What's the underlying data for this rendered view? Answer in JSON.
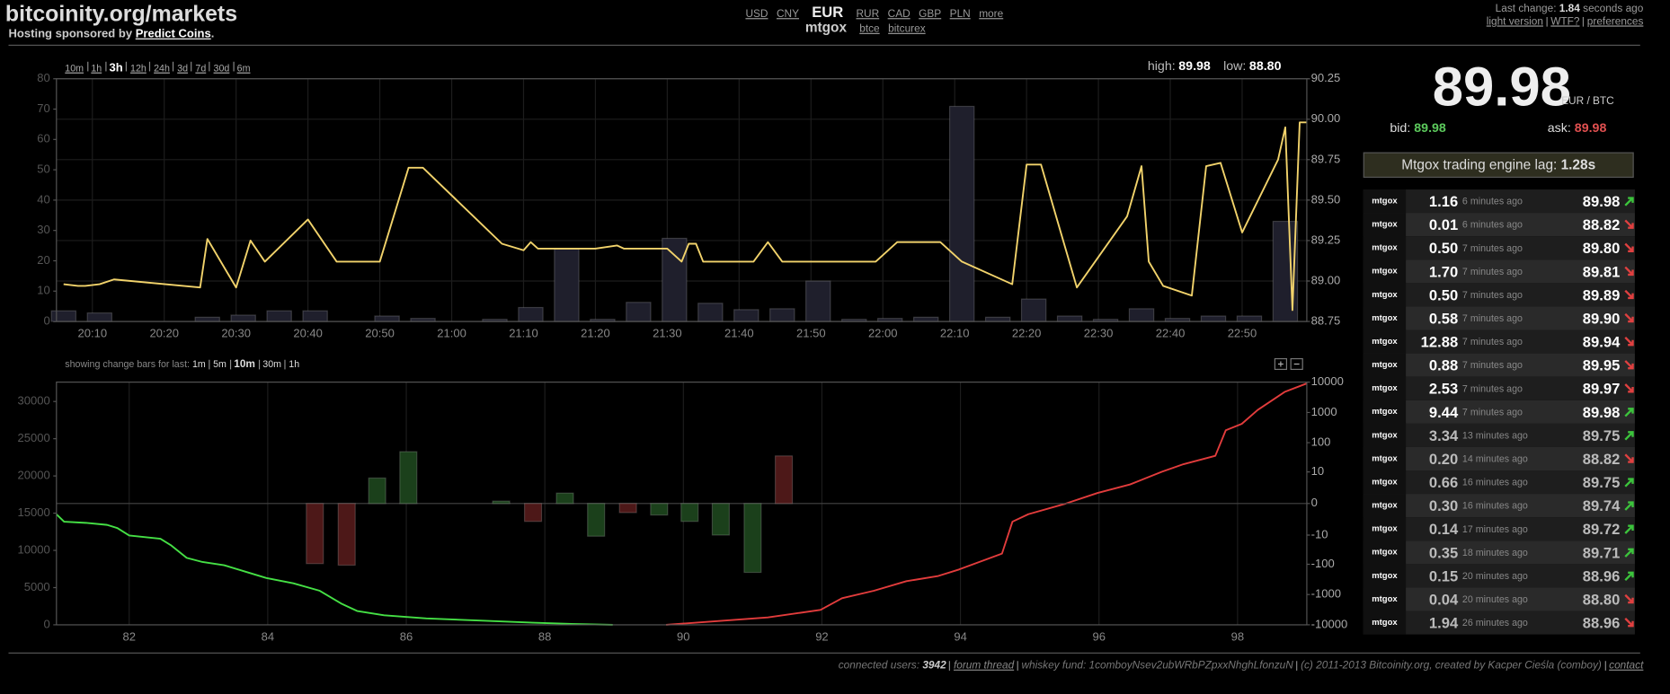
{
  "header": {
    "title": "bitcoinity.org/markets",
    "sponsor_text": "Hosting sponsored by",
    "sponsor_link": "Predict Coins",
    "sponsor_end": "."
  },
  "currencies": {
    "before": [
      "USD",
      "CNY"
    ],
    "active": "EUR",
    "after": [
      "RUR",
      "CAD",
      "GBP",
      "PLN",
      "more"
    ],
    "exchange": "mtgox",
    "exchanges": [
      "btce",
      "bitcurex"
    ]
  },
  "status": {
    "label": "Last change:",
    "value": "1.84",
    "unit": "seconds ago",
    "links": [
      "light version",
      "WTF?",
      "preferences"
    ]
  },
  "timespans": {
    "options": [
      "10m",
      "1h",
      "3h",
      "12h",
      "24h",
      "3d",
      "7d",
      "30d",
      "6m"
    ],
    "active": "3h"
  },
  "range": {
    "high_label": "high:",
    "high": "89.98",
    "low_label": "low:",
    "low": "88.80"
  },
  "change_bars": {
    "label": "showing change bars for last:",
    "options": [
      "1m",
      "5m",
      "10m",
      "30m",
      "1h"
    ],
    "active": "10m"
  },
  "ticker": {
    "price": "89.98",
    "unit": "EUR / BTC",
    "bid_label": "bid:",
    "bid": "89.98",
    "ask_label": "ask:",
    "ask": "89.98",
    "lag_label": "Mtgox trading engine lag:",
    "lag": "1.28s"
  },
  "trades": {
    "rows": [
      {
        "exchange": "mtgox",
        "amount": "1.16",
        "time": "6 minutes ago",
        "price": "89.98",
        "dir": "up"
      },
      {
        "exchange": "mtgox",
        "amount": "0.01",
        "time": "6 minutes ago",
        "price": "88.82",
        "dir": "down"
      },
      {
        "exchange": "mtgox",
        "amount": "0.50",
        "time": "7 minutes ago",
        "price": "89.80",
        "dir": "down"
      },
      {
        "exchange": "mtgox",
        "amount": "1.70",
        "time": "7 minutes ago",
        "price": "89.81",
        "dir": "down"
      },
      {
        "exchange": "mtgox",
        "amount": "0.50",
        "time": "7 minutes ago",
        "price": "89.89",
        "dir": "down"
      },
      {
        "exchange": "mtgox",
        "amount": "0.58",
        "time": "7 minutes ago",
        "price": "89.90",
        "dir": "down"
      },
      {
        "exchange": "mtgox",
        "amount": "12.88",
        "time": "7 minutes ago",
        "price": "89.94",
        "dir": "down"
      },
      {
        "exchange": "mtgox",
        "amount": "0.88",
        "time": "7 minutes ago",
        "price": "89.95",
        "dir": "down"
      },
      {
        "exchange": "mtgox",
        "amount": "2.53",
        "time": "7 minutes ago",
        "price": "89.97",
        "dir": "down"
      },
      {
        "exchange": "mtgox",
        "amount": "9.44",
        "time": "7 minutes ago",
        "price": "89.98",
        "dir": "up"
      },
      {
        "exchange": "mtgox",
        "amount": "3.34",
        "time": "13 minutes ago",
        "price": "89.75",
        "dir": "up"
      },
      {
        "exchange": "mtgox",
        "amount": "0.20",
        "time": "14 minutes ago",
        "price": "88.82",
        "dir": "down"
      },
      {
        "exchange": "mtgox",
        "amount": "0.66",
        "time": "16 minutes ago",
        "price": "89.75",
        "dir": "up"
      },
      {
        "exchange": "mtgox",
        "amount": "0.30",
        "time": "16 minutes ago",
        "price": "89.74",
        "dir": "up"
      },
      {
        "exchange": "mtgox",
        "amount": "0.14",
        "time": "17 minutes ago",
        "price": "89.72",
        "dir": "up"
      },
      {
        "exchange": "mtgox",
        "amount": "0.35",
        "time": "18 minutes ago",
        "price": "89.71",
        "dir": "up"
      },
      {
        "exchange": "mtgox",
        "amount": "0.15",
        "time": "20 minutes ago",
        "price": "88.96",
        "dir": "up"
      },
      {
        "exchange": "mtgox",
        "amount": "0.04",
        "time": "20 minutes ago",
        "price": "88.80",
        "dir": "down"
      },
      {
        "exchange": "mtgox",
        "amount": "1.94",
        "time": "26 minutes ago",
        "price": "88.96",
        "dir": "down"
      }
    ]
  },
  "footer": {
    "users_label": "connected users:",
    "users": "3942",
    "forum": "forum thread",
    "fund": "whiskey fund: 1comboyNsev2ubWRbPZpxxNhghLfonzuN",
    "copyright": "(c) 2011-2013 Bitcoinity.org, created by Kacper Cieśla (comboy)",
    "contact": "contact"
  },
  "chart_data": [
    {
      "type": "line",
      "xlim": [
        "20:05",
        "22:59"
      ],
      "xticks": [
        "20:10",
        "20:20",
        "20:30",
        "20:40",
        "20:50",
        "21:00",
        "21:10",
        "21:20",
        "21:30",
        "21:40",
        "21:50",
        "22:00",
        "22:10",
        "22:20",
        "22:30",
        "22:40",
        "22:50"
      ],
      "ylim": [
        0,
        80
      ],
      "yticks": [
        0,
        10,
        20,
        30,
        40,
        50,
        60,
        70,
        80
      ],
      "y2lim": [
        88.75,
        90.25
      ],
      "y2ticks": [
        88.75,
        {
          "value": 89,
          "label": "89.00"
        },
        89.25,
        {
          "value": 89.5,
          "label": "89.50"
        },
        89.75,
        {
          "value": 90,
          "label": "90.00"
        },
        90.25
      ],
      "grid": [
        "x",
        "y2"
      ],
      "series": [
        {
          "type": "bar",
          "color": "#1f1f2c",
          "x": [
            "20:06",
            "20:11",
            "20:26",
            "20:31",
            "20:36",
            "20:41",
            "20:51",
            "20:56",
            "21:06",
            "21:11",
            "21:16",
            "21:21",
            "21:26",
            "21:31",
            "21:36",
            "21:41",
            "21:46",
            "21:51",
            "21:56",
            "22:01",
            "22:06",
            "22:11",
            "22:16",
            "22:21",
            "22:26",
            "22:31",
            "22:36",
            "22:41",
            "22:46",
            "22:51",
            "22:56"
          ],
          "values": [
            3.5,
            2.8,
            1.4,
            2.1,
            3.5,
            3.5,
            1.8,
            1,
            0.7,
            4.6,
            23.9,
            0.7,
            6.3,
            27.4,
            6,
            3.9,
            4.2,
            13.3,
            0.7,
            1,
            1.4,
            70.9,
            1.4,
            7.4,
            1.8,
            0.7,
            4.2,
            1,
            1.8,
            1.8,
            33
          ]
        },
        {
          "type": "line",
          "axis": "y2",
          "color": "#f2d36b",
          "x": [
            "20:06",
            "20:08",
            "20:09",
            "20:11",
            "20:13",
            "20:25",
            "20:26",
            "20:30",
            "20:32",
            "20:34",
            "20:40",
            "20:44",
            "20:50",
            "20:54",
            "20:56",
            "21:07",
            "21:10",
            "21:11",
            "21:12",
            "21:20",
            "21:23",
            "21:24",
            "21:30",
            "21:32",
            "21:33",
            "21:34",
            "21:35",
            "21:42",
            "21:44",
            "21:46",
            "21:59",
            "22:02",
            "22:08",
            "22:11",
            "22:18",
            "22:20",
            "22:22",
            "22:27",
            "22:34",
            "22:36",
            "22:37",
            "22:39",
            "22:43",
            "22:45",
            "22:47",
            "22:50",
            "22:55",
            "22:56",
            "22:57",
            "22:58",
            "22:59"
          ],
          "values": [
            88.98,
            88.97,
            88.97,
            88.98,
            89.01,
            88.96,
            89.26,
            88.96,
            89.25,
            89.12,
            89.38,
            89.12,
            89.12,
            89.7,
            89.7,
            89.23,
            89.19,
            89.24,
            89.2,
            89.2,
            89.22,
            89.2,
            89.2,
            89.12,
            89.23,
            89.23,
            89.12,
            89.12,
            89.24,
            89.12,
            89.12,
            89.24,
            89.24,
            89.12,
            88.98,
            89.72,
            89.72,
            88.96,
            89.4,
            89.71,
            89.12,
            88.97,
            88.91,
            89.71,
            89.73,
            89.3,
            89.75,
            89.95,
            88.82,
            89.98,
            89.98
          ]
        }
      ]
    },
    {
      "type": "line",
      "xlim": [
        80.95,
        99.0
      ],
      "xticks": [
        82,
        84,
        86,
        88,
        90,
        92,
        94,
        96,
        98
      ],
      "ylim": [
        0,
        32600
      ],
      "yticks": [
        0,
        5000,
        10000,
        15000,
        20000,
        25000,
        30000
      ],
      "y2lim": [
        -10000,
        10000
      ],
      "y2scale": "symlog",
      "y2ticks": [
        -10000,
        -1000,
        -100,
        -10,
        0,
        10,
        100,
        1000,
        10000
      ],
      "grid": [
        "x"
      ],
      "series": [
        {
          "type": "line",
          "color": "#45e045",
          "x": [
            80.95,
            81.06,
            81.37,
            81.68,
            81.83,
            82.0,
            82.45,
            82.6,
            82.83,
            83.06,
            83.37,
            83.68,
            83.98,
            84.37,
            84.75,
            85.06,
            85.29,
            85.68,
            86.29,
            87.06,
            87.83,
            88.45,
            88.98
          ],
          "values": [
            14860,
            13860,
            13700,
            13430,
            13000,
            12000,
            11570,
            10710,
            9000,
            8430,
            8000,
            7140,
            6290,
            5570,
            4570,
            2860,
            1860,
            1290,
            860,
            570,
            290,
            100,
            0
          ]
        },
        {
          "type": "line",
          "color": "#e23c3c",
          "x": [
            89.75,
            90.6,
            91.22,
            91.98,
            92.29,
            92.75,
            93.22,
            93.68,
            93.98,
            94.6,
            94.75,
            94.98,
            95.52,
            95.98,
            96.45,
            96.91,
            97.22,
            97.68,
            97.83,
            98.06,
            98.29,
            98.68,
            99.0
          ],
          "values": [
            0,
            570,
            1000,
            2000,
            3570,
            4570,
            5860,
            6570,
            7430,
            9570,
            13860,
            14860,
            16290,
            17710,
            18860,
            20570,
            21570,
            22710,
            26140,
            27000,
            28860,
            31290,
            32430
          ]
        },
        {
          "type": "bar",
          "axis": "y2",
          "x": [
            84.68,
            85.14,
            85.58,
            86.03,
            87.37,
            87.83,
            88.29,
            88.74,
            89.2,
            89.65,
            90.09,
            90.54,
            91.0,
            91.45
          ],
          "values": [
            -95,
            -107,
            5.9,
            50,
            0.2,
            -2.9,
            1.2,
            -11,
            -1,
            -1.4,
            -2.9,
            -10,
            -186,
            36
          ],
          "colors": [
            "#4d1818",
            "#4d1818",
            "#1b401b",
            "#1b401b",
            "#1b401b",
            "#4d1818",
            "#1b401b",
            "#1b401b",
            "#4d1818",
            "#1b401b",
            "#1b401b",
            "#1b401b",
            "#1b401b",
            "#4d1818"
          ]
        }
      ]
    }
  ]
}
